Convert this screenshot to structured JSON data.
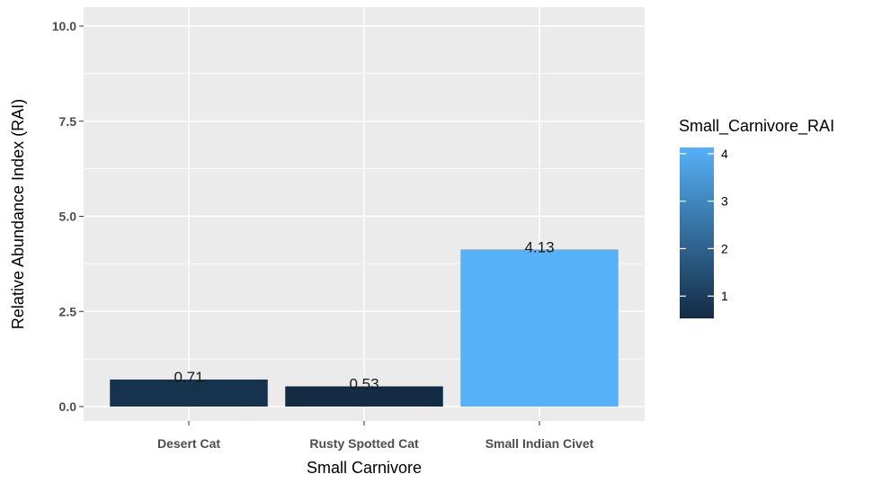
{
  "chart_data": {
    "type": "bar",
    "categories": [
      "Desert Cat",
      "Rusty Spotted Cat",
      "Small Indian Civet"
    ],
    "values": [
      0.71,
      0.53,
      4.13
    ],
    "data_labels": [
      "0.71",
      "0.53",
      "4.13"
    ],
    "xlabel": "Small Carnivore",
    "ylabel": "Relative Abundance Index (RAI)",
    "ylim": [
      0,
      10
    ],
    "yticks": [
      0.0,
      2.5,
      5.0,
      7.5,
      10.0
    ],
    "ytick_labels": [
      "0.0",
      "2.5",
      "5.0",
      "7.5",
      "10.0"
    ],
    "grid": true,
    "legend": {
      "title": "Small_Carnivore_RAI",
      "placement": "right",
      "type": "colorbar",
      "range": [
        0.53,
        4.13
      ],
      "ticks": [
        1,
        2,
        3,
        4
      ],
      "tick_labels": [
        "1",
        "2",
        "3",
        "4"
      ],
      "low_color": "#132b43",
      "high_color": "#56b1f7"
    },
    "panel_background": "#ebebeb",
    "grid_color": "#ffffff"
  }
}
